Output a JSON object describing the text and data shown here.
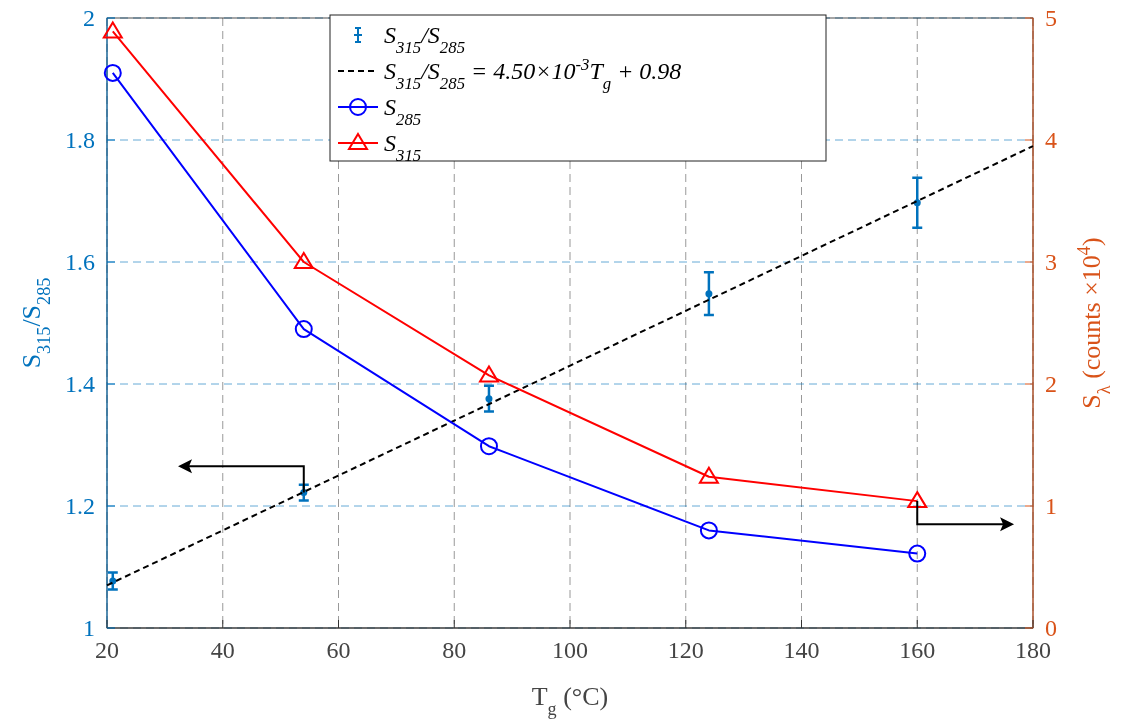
{
  "chart_data": {
    "type": "line",
    "xlabel": "T$_{g}$ (°C)",
    "ylabel": "S$_{315}$/S$_{285}$",
    "y2label": "S$_{λ}$ (counts ×10$^{4}$)",
    "xlim": [
      20,
      180
    ],
    "xticks": [
      20,
      40,
      60,
      80,
      100,
      120,
      140,
      160,
      180
    ],
    "ylim": [
      1,
      2
    ],
    "yticks": [
      1,
      1.2,
      1.4,
      1.6,
      1.8,
      2
    ],
    "y2lim": [
      0,
      5
    ],
    "y2ticks": [
      0,
      1,
      2,
      3,
      4,
      5
    ],
    "grid": true,
    "legend": "top",
    "series": [
      {
        "name": "S$_{315}$/S$_{285}$",
        "type": "scatter",
        "color": "#0072bd",
        "x": [
          21,
          54,
          86,
          124,
          160
        ],
        "values": [
          1.077,
          1.222,
          1.376,
          1.548,
          1.697
        ],
        "errors": [
          0.014,
          0.013,
          0.021,
          0.035,
          0.041
        ]
      },
      {
        "name": "S$_{315}$/S$_{285}$ = 4.50×10$^{-3}$T$_{g}$ + 0.98",
        "color": "#000000",
        "line_style": "dashed",
        "marker": "none",
        "x": [
          20,
          180
        ],
        "values": [
          1.07,
          1.79
        ]
      },
      {
        "name": "S$_{285}$",
        "axis": "y2",
        "color": "#0000ff",
        "marker": "circle",
        "x": [
          21,
          54,
          86,
          124,
          160
        ],
        "values": [
          4.55,
          2.45,
          1.49,
          0.8,
          0.61
        ]
      },
      {
        "name": "S$_{315}$",
        "axis": "y2",
        "color": "#ff0000",
        "marker": "triangle",
        "x": [
          21,
          54,
          86,
          124,
          160
        ],
        "values": [
          4.89,
          3.0,
          2.07,
          1.24,
          1.04
        ]
      }
    ]
  }
}
